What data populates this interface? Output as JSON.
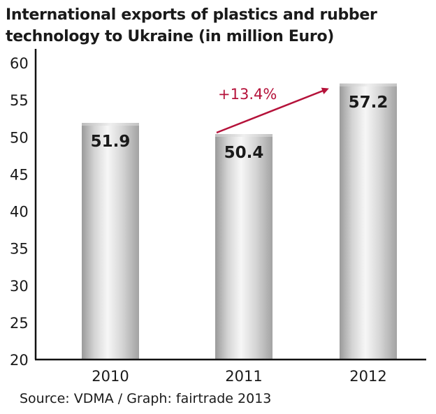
{
  "chart_data": {
    "type": "bar",
    "title": [
      "International exports of plastics and rubber",
      "technology to Ukraine (in million Euro)"
    ],
    "categories": [
      "2010",
      "2011",
      "2012"
    ],
    "values": [
      51.9,
      50.4,
      57.2
    ],
    "value_labels": [
      "51.9",
      "50.4",
      "57.2"
    ],
    "ylim": [
      20,
      60
    ],
    "yticks": [
      20,
      25,
      30,
      35,
      40,
      45,
      50,
      55,
      60
    ],
    "grid": false,
    "annotation": {
      "text": "+13.4%",
      "from_category": "2011",
      "to_category": "2012",
      "color": "#b5123a"
    },
    "bar_color": "#c9c9c9"
  },
  "source": "Source: VDMA / Graph: fairtrade 2013"
}
